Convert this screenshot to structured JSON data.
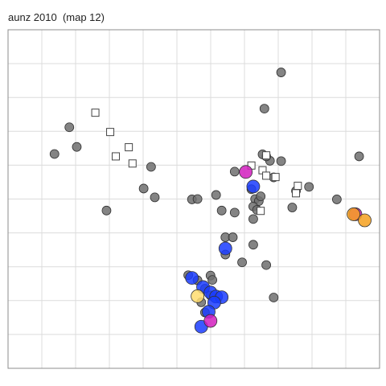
{
  "chart_data": {
    "type": "scatter",
    "title": "aunz 2010  (map 12)",
    "xlabel": "",
    "ylabel": "",
    "xlim": [
      0,
      100
    ],
    "ylim": [
      0,
      100
    ],
    "grid": true,
    "legend": "none",
    "colors": {
      "grey": "#6e6e6e",
      "blue": "#1a3cff",
      "magenta": "#d21ebe",
      "orange": "#f5a01e",
      "yellow": "#ffdc6e",
      "open": "#ffffff"
    },
    "series": [
      {
        "style": "grey",
        "points": [
          [
            73.5,
            87.4
          ],
          [
            16.5,
            71.2
          ],
          [
            12.5,
            63.3
          ],
          [
            18.5,
            65.4
          ],
          [
            36.5,
            53.1
          ],
          [
            38.5,
            59.5
          ],
          [
            26.5,
            46.6
          ],
          [
            39.5,
            50.5
          ],
          [
            49.5,
            49.9
          ],
          [
            51.0,
            50.0
          ],
          [
            56.0,
            51.2
          ],
          [
            61.0,
            58.1
          ],
          [
            66.5,
            50.0
          ],
          [
            67.5,
            49.4
          ],
          [
            65.5,
            52.9
          ],
          [
            68.0,
            50.8
          ],
          [
            66.0,
            47.8
          ],
          [
            71.5,
            56.4
          ],
          [
            73.5,
            61.2
          ],
          [
            76.5,
            47.5
          ],
          [
            77.5,
            52.4
          ],
          [
            81.0,
            53.6
          ],
          [
            66.0,
            44.1
          ],
          [
            58.5,
            38.7
          ],
          [
            60.5,
            38.7
          ],
          [
            58.5,
            33.6
          ],
          [
            66.0,
            36.5
          ],
          [
            63.0,
            31.3
          ],
          [
            54.5,
            27.4
          ],
          [
            55.0,
            26.1
          ],
          [
            51.0,
            26.0
          ],
          [
            48.5,
            27.5
          ],
          [
            53.0,
            23.5
          ],
          [
            54.5,
            21.5
          ],
          [
            52.0,
            19.5
          ],
          [
            53.0,
            16.5
          ],
          [
            69.5,
            30.5
          ],
          [
            71.5,
            20.9
          ],
          [
            70.5,
            61.3
          ],
          [
            69.0,
            76.7
          ],
          [
            69.5,
            62.6
          ],
          [
            68.5,
            63.2
          ],
          [
            88.5,
            49.9
          ],
          [
            94.5,
            62.6
          ],
          [
            57.5,
            46.6
          ],
          [
            61.0,
            46.0
          ],
          [
            67.0,
            46.8
          ]
        ]
      },
      {
        "style": "open",
        "points": [
          [
            23.5,
            75.5
          ],
          [
            27.5,
            69.8
          ],
          [
            32.5,
            65.3
          ],
          [
            29.0,
            62.6
          ],
          [
            33.5,
            60.5
          ],
          [
            65.5,
            59.9
          ],
          [
            68.5,
            58.5
          ],
          [
            69.5,
            62.9
          ],
          [
            69.5,
            56.9
          ],
          [
            72.0,
            56.5
          ],
          [
            78.0,
            53.9
          ],
          [
            77.5,
            51.7
          ],
          [
            68.0,
            46.5
          ]
        ]
      },
      {
        "style": "blue",
        "points": [
          [
            66.0,
            53.7
          ],
          [
            58.5,
            35.4
          ],
          [
            49.5,
            26.7
          ],
          [
            52.5,
            24.0
          ],
          [
            54.5,
            22.4
          ],
          [
            56.0,
            21.2
          ],
          [
            57.5,
            21.0
          ],
          [
            55.5,
            19.4
          ],
          [
            54.0,
            16.7
          ],
          [
            52.0,
            12.3
          ]
        ]
      },
      {
        "style": "magenta",
        "points": [
          [
            64.0,
            58.0
          ],
          [
            54.5,
            14.0
          ],
          [
            93.5,
            45.5
          ]
        ]
      },
      {
        "style": "orange",
        "points": [
          [
            93.0,
            45.5
          ],
          [
            96.0,
            43.7
          ]
        ]
      },
      {
        "style": "yellow",
        "points": [
          [
            51.0,
            21.3
          ]
        ]
      }
    ]
  }
}
